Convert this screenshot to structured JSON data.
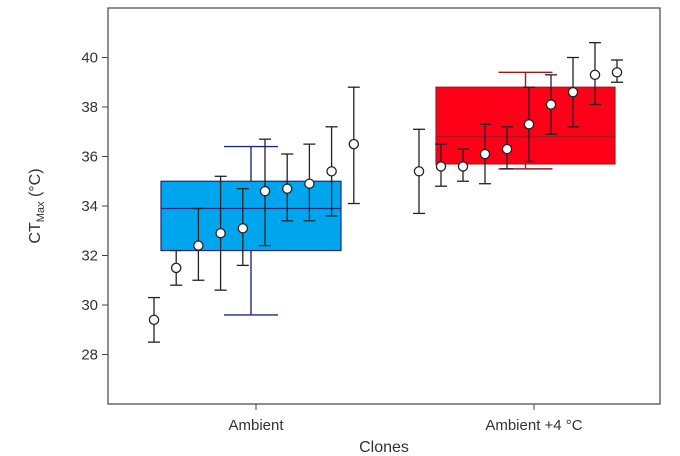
{
  "chart_data": {
    "type": "box",
    "xlabel": "Clones",
    "ylabel_main": "CT",
    "ylabel_sub": "Max",
    "ylabel_unit": " (°C)",
    "ylim": [
      26.0,
      42.0
    ],
    "yticks": [
      28,
      30,
      32,
      34,
      36,
      38,
      40
    ],
    "grid": false,
    "categories": [
      "Ambient",
      "Ambient +4 °C"
    ],
    "groups": [
      {
        "name": "Ambient",
        "color": "#00a6ed",
        "edge_color": "#1f2a7a",
        "box": {
          "q1": 32.2,
          "median": 33.9,
          "q3": 35.0,
          "whisker_low": 29.6,
          "whisker_high": 36.4
        },
        "clones": [
          {
            "mean": 29.4,
            "low": 28.5,
            "high": 30.3
          },
          {
            "mean": 31.5,
            "low": 30.8,
            "high": 32.2
          },
          {
            "mean": 32.4,
            "low": 31.0,
            "high": 33.9
          },
          {
            "mean": 32.9,
            "low": 30.6,
            "high": 35.2
          },
          {
            "mean": 33.1,
            "low": 31.6,
            "high": 34.7
          },
          {
            "mean": 34.6,
            "low": 32.4,
            "high": 36.7
          },
          {
            "mean": 34.7,
            "low": 33.4,
            "high": 36.1
          },
          {
            "mean": 34.9,
            "low": 33.4,
            "high": 36.5
          },
          {
            "mean": 35.4,
            "low": 33.6,
            "high": 37.2
          },
          {
            "mean": 36.5,
            "low": 34.1,
            "high": 38.8
          }
        ]
      },
      {
        "name": "Ambient +4 °C",
        "color": "#ff0019",
        "edge_color": "#9b1c1c",
        "box": {
          "q1": 35.7,
          "median": 36.8,
          "q3": 38.8,
          "whisker_low": 35.5,
          "whisker_high": 39.4
        },
        "clones": [
          {
            "mean": 35.4,
            "low": 33.7,
            "high": 37.1
          },
          {
            "mean": 35.6,
            "low": 34.8,
            "high": 36.5
          },
          {
            "mean": 35.6,
            "low": 35.0,
            "high": 36.3
          },
          {
            "mean": 36.1,
            "low": 34.9,
            "high": 37.3
          },
          {
            "mean": 36.3,
            "low": 35.5,
            "high": 37.2
          },
          {
            "mean": 37.3,
            "low": 35.8,
            "high": 38.8
          },
          {
            "mean": 38.1,
            "low": 36.9,
            "high": 39.3
          },
          {
            "mean": 38.6,
            "low": 37.2,
            "high": 40.0
          },
          {
            "mean": 39.3,
            "low": 38.1,
            "high": 40.6
          },
          {
            "mean": 39.4,
            "low": 39.0,
            "high": 39.9
          }
        ]
      }
    ]
  }
}
